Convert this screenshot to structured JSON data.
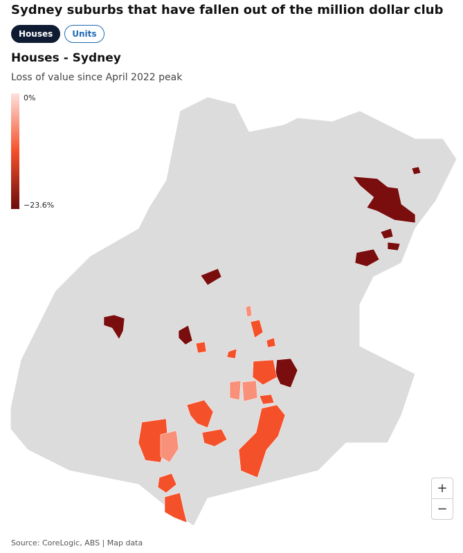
{
  "header": {
    "title": "Sydney suburbs that have fallen out of the million dollar club",
    "tabs": [
      "Houses",
      "Units"
    ]
  },
  "map": {
    "title": "Houses - Sydney",
    "subtitle": "Loss of value since April 2022 peak",
    "legend": {
      "top_label": "0%",
      "bottom_label": "−23.6%"
    },
    "zoom": [
      "+",
      "−"
    ]
  },
  "footer": {
    "source": "Source: CoreLogic, ABS | Map data"
  }
}
